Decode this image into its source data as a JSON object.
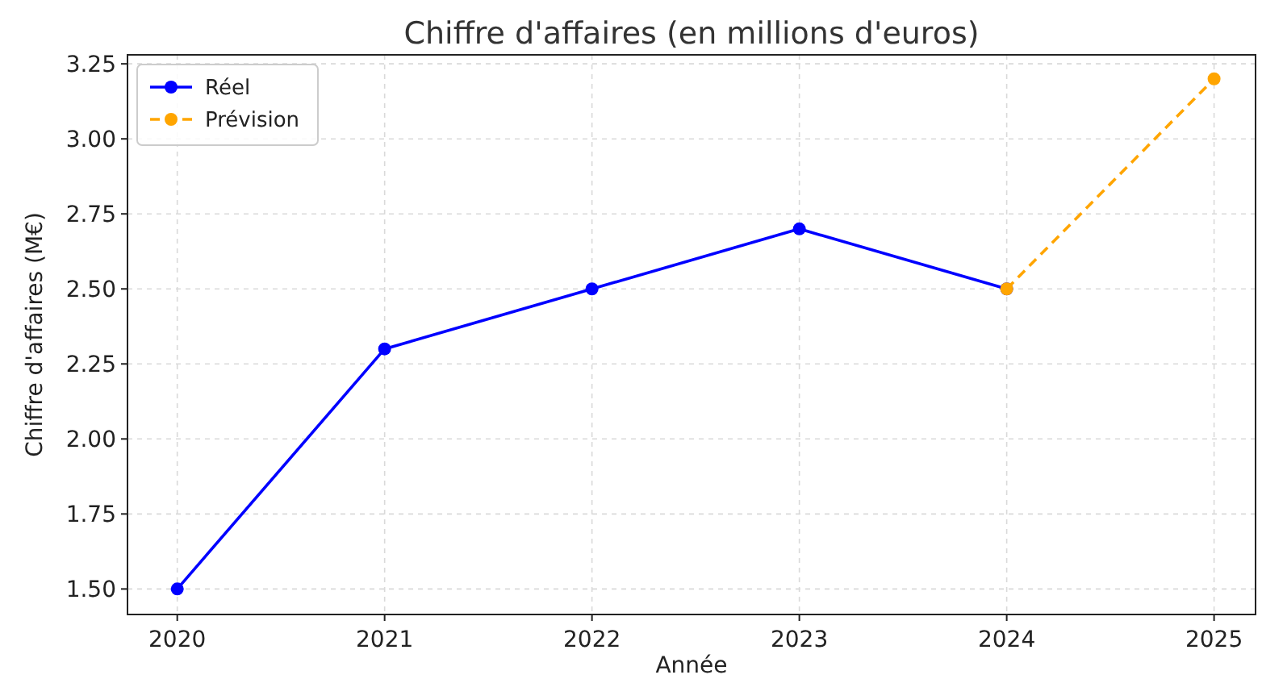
{
  "chart_data": {
    "type": "line",
    "title": "Chiffre d'affaires (en millions d'euros)",
    "xlabel": "Année",
    "ylabel": "Chiffre d'affaires (M€)",
    "xlim": [
      2019.76,
      2025.2
    ],
    "xticks": [
      2020,
      2021,
      2022,
      2023,
      2024,
      2025
    ],
    "ylim": [
      1.415,
      3.28
    ],
    "yticks": [
      {
        "value": 1.5,
        "label": "1.50"
      },
      {
        "value": 1.75,
        "label": "1.75"
      },
      {
        "value": 2,
        "label": "2.00"
      },
      {
        "value": 2.25,
        "label": "2.25"
      },
      {
        "value": 2.5,
        "label": "2.50"
      },
      {
        "value": 2.75,
        "label": "2.75"
      },
      {
        "value": 3,
        "label": "3.00"
      },
      {
        "value": 3.25,
        "label": "3.25"
      }
    ],
    "grid": true,
    "legend": "top left",
    "marker": "circle",
    "series": [
      {
        "name": "Réel",
        "color": "#0000ff",
        "x": [
          2020,
          2021,
          2022,
          2023,
          2024
        ],
        "values": [
          1.5,
          2.3,
          2.5,
          2.7,
          2.5
        ],
        "line_style": "solid"
      },
      {
        "name": "Prévision",
        "color": "#ffa500",
        "x": [
          2024,
          2025
        ],
        "values": [
          2.5,
          3.2
        ],
        "line_style": "dashed"
      }
    ]
  }
}
